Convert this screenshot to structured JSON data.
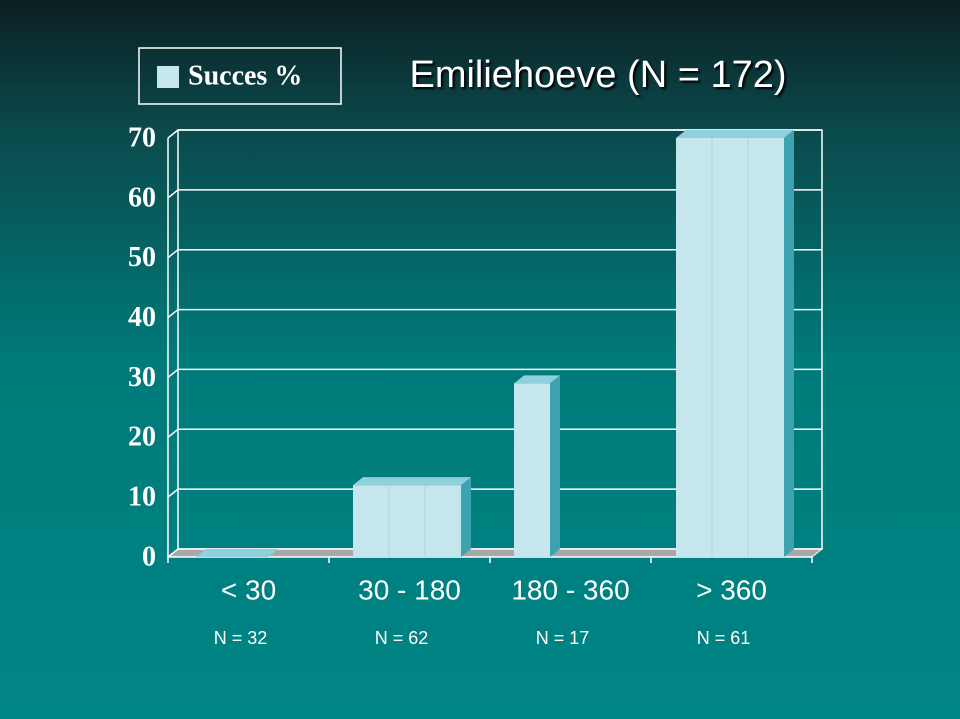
{
  "chart_data": {
    "type": "bar",
    "title": "Emiliehoeve (N = 172)",
    "categories": [
      "< 30",
      "30 - 180",
      "180 - 360",
      "> 360"
    ],
    "annotations": [
      "N = 32",
      "N = 62",
      "N = 17",
      "N = 61"
    ],
    "series": [
      {
        "name": "Succes %",
        "color": "#c5e6ec",
        "values": [
          0,
          12,
          29,
          70
        ]
      }
    ],
    "ylim": [
      0,
      70
    ],
    "yticks": [
      0,
      10,
      20,
      30,
      40,
      50,
      60,
      70
    ],
    "grid": true
  }
}
